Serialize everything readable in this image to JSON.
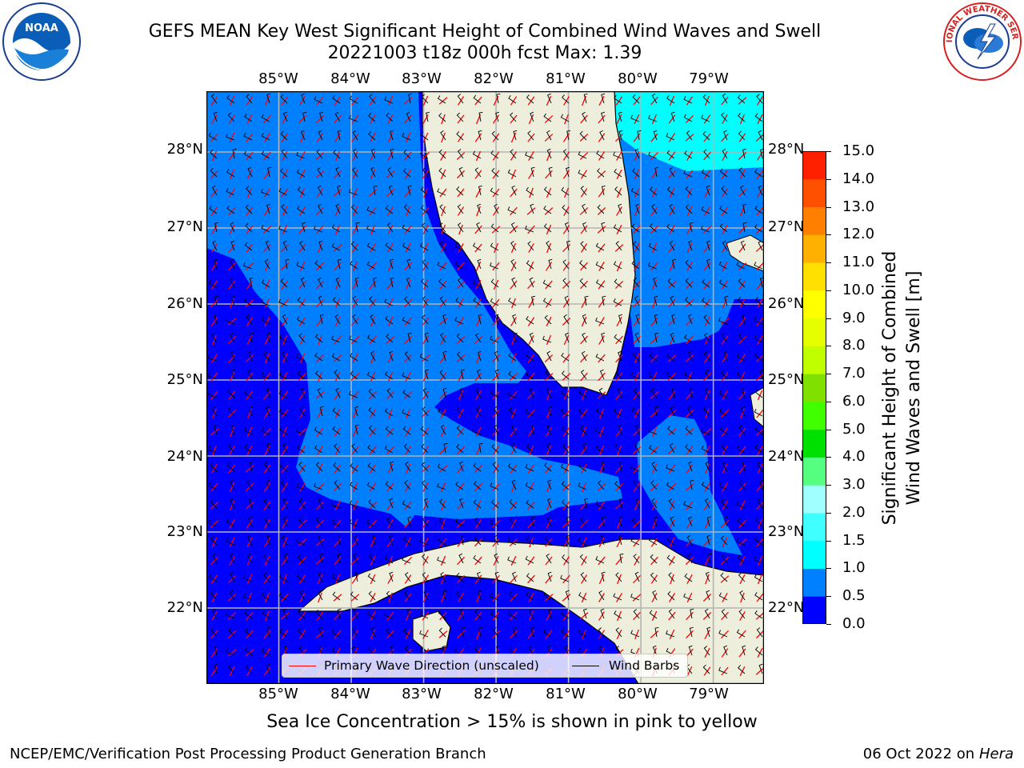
{
  "title_line1": "GEFS MEAN Key West Significant Height of Combined Wind Waves and Swell",
  "title_line2": "20221003 t18z 000h fcst   Max: 1.39",
  "logos": {
    "left": "NOAA",
    "right": "NATIONAL WEATHER SERVICE"
  },
  "map": {
    "lon_labels": [
      "85°W",
      "84°W",
      "83°W",
      "82°W",
      "81°W",
      "80°W",
      "79°W"
    ],
    "lat_labels": [
      "28°N",
      "27°N",
      "26°N",
      "25°N",
      "24°N",
      "23°N",
      "22°N"
    ],
    "lon_range": [
      -86.0,
      -78.3
    ],
    "lat_range": [
      21.0,
      28.8
    ],
    "land_color": "#eeeedc",
    "band_colors": {
      "0.0-0.5": "#0000ff",
      "0.5-1.0": "#0080ff",
      "1.0-1.5": "#00ffff"
    }
  },
  "colorbar": {
    "label": "Significant Height of Combined Wind Waves and Swell [m]",
    "label_line1": "Significant Height of Combined",
    "label_line2": "Wind Waves and Swell [m]",
    "ticks": [
      "15.0",
      "14.0",
      "13.0",
      "12.0",
      "11.0",
      "10.0",
      "9.0",
      "8.0",
      "7.0",
      "6.0",
      "5.0",
      "4.0",
      "3.0",
      "2.0",
      "1.5",
      "1.0",
      "0.5",
      "0.0"
    ],
    "colors": [
      "#0000ff",
      "#0080ff",
      "#00ffff",
      "#40ffff",
      "#a0ffff",
      "#55ff80",
      "#00e000",
      "#40ff00",
      "#80e000",
      "#c0ff00",
      "#e6ff00",
      "#ffff00",
      "#ffe000",
      "#ffb000",
      "#ff8000",
      "#ff5000",
      "#ff2000"
    ]
  },
  "legend": {
    "wave_label": "Primary Wave Direction (unscaled)",
    "wind_label": "Wind Barbs",
    "wave_color": "#ff0000",
    "wind_color": "#000000"
  },
  "footer": {
    "note": "Sea Ice Concentration > 15% is shown in pink to yellow",
    "credit": "NCEP/EMC/Verification Post Processing Product Generation Branch",
    "date": "06 Oct 2022 on",
    "host": "Hera"
  }
}
